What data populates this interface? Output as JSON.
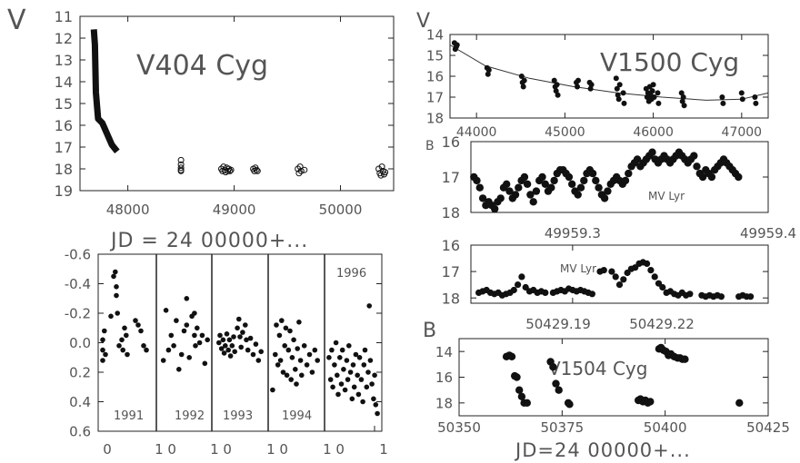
{
  "chart_data": [
    {
      "type": "scatter",
      "title": "V404 Cyg",
      "ylabel": "V",
      "xlabel": "JD = 24 00000+...",
      "xlim": [
        47550,
        50500
      ],
      "ylim": [
        19,
        11
      ],
      "x_ticks": [
        48000,
        49000,
        50000
      ],
      "x_tick_labels": [
        "48000",
        "49000",
        "50000"
      ],
      "y_ticks": [
        11,
        12,
        13,
        14,
        15,
        16,
        17,
        18,
        19
      ],
      "y_tick_labels": [
        "11",
        "12",
        "13",
        "14",
        "15",
        "16",
        "17",
        "18",
        "19"
      ],
      "series": [
        {
          "style": "line",
          "x": [
            47680,
            47690,
            47700,
            47720,
            47760,
            47850,
            47900
          ],
          "y": [
            11.6,
            12.3,
            14.5,
            15.7,
            15.9,
            16.9,
            17.2
          ]
        },
        {
          "style": "open-circles",
          "x": [
            48500,
            48500,
            48500,
            48500,
            48500,
            48880,
            48890,
            48900,
            48910,
            48920,
            48930,
            48940,
            48950,
            48960,
            48970,
            49180,
            49190,
            49200,
            49210,
            49220,
            49600,
            49610,
            49620,
            49630,
            49660,
            50360,
            50370,
            50380,
            50390,
            50400,
            50410,
            50420
          ],
          "y": [
            17.6,
            17.8,
            17.95,
            18.05,
            18.1,
            18.0,
            18.1,
            17.9,
            18.05,
            18.15,
            17.95,
            18.1,
            18.0,
            18.1,
            18.05,
            18.0,
            18.1,
            17.95,
            18.05,
            18.1,
            18.0,
            18.2,
            17.9,
            18.1,
            18.05,
            18.0,
            18.2,
            18.3,
            17.9,
            18.1,
            18.25,
            18.15
          ]
        }
      ]
    },
    {
      "type": "scatter",
      "ylim": [
        0.6,
        -0.6
      ],
      "y_ticks": [
        -0.6,
        -0.4,
        -0.2,
        0.0,
        0.2,
        0.4,
        0.6
      ],
      "y_tick_labels": [
        "-0.6",
        "-0.4",
        "-0.2",
        "0.0",
        "0.2",
        "0.4",
        "0.6"
      ],
      "x_tick_labels": [
        "0",
        "1 0",
        "1 0",
        "1 0",
        "1 0",
        "1"
      ],
      "panel_labels": [
        "1991",
        "1992",
        "1993",
        "1994",
        "1996"
      ],
      "panels": [
        {
          "x": [
            0.05,
            0.05,
            0.05,
            0.08,
            0.1,
            0.2,
            0.25,
            0.28,
            0.3,
            0.3,
            0.32,
            0.35,
            0.4,
            0.42,
            0.45,
            0.48,
            0.5,
            0.65,
            0.7,
            0.75,
            0.8,
            0.85
          ],
          "y": [
            -0.02,
            0.05,
            0.12,
            -0.08,
            0.08,
            -0.18,
            -0.45,
            -0.48,
            -0.38,
            -0.32,
            -0.2,
            0.02,
            -0.02,
            0.05,
            -0.1,
            -0.05,
            0.08,
            -0.15,
            -0.12,
            -0.08,
            0.02,
            0.05
          ]
        },
        {
          "x": [
            0.1,
            0.15,
            0.2,
            0.25,
            0.3,
            0.35,
            0.4,
            0.45,
            0.5,
            0.55,
            0.55,
            0.6,
            0.65,
            0.7,
            0.7,
            0.72,
            0.75,
            0.8,
            0.85,
            0.9,
            0.95
          ],
          "y": [
            0.12,
            -0.22,
            0.05,
            -0.05,
            0.02,
            -0.15,
            0.18,
            0.08,
            -0.08,
            -0.12,
            -0.3,
            0.1,
            -0.18,
            -0.05,
            -0.2,
            0.02,
            -0.1,
            0.0,
            -0.05,
            0.14,
            -0.02
          ]
        },
        {
          "x": [
            0.1,
            0.12,
            0.15,
            0.18,
            0.2,
            0.22,
            0.25,
            0.28,
            0.3,
            0.32,
            0.35,
            0.38,
            0.4,
            0.45,
            0.48,
            0.5,
            0.52,
            0.55,
            0.6,
            0.62,
            0.65,
            0.7,
            0.75,
            0.8,
            0.85,
            0.9
          ],
          "y": [
            0.0,
            -0.05,
            0.04,
            -0.02,
            0.07,
            0.02,
            -0.06,
            0.05,
            -0.02,
            0.09,
            0.02,
            -0.04,
            0.06,
            -0.1,
            -0.16,
            -0.04,
            0.03,
            -0.07,
            -0.12,
            -0.02,
            0.05,
            -0.03,
            0.08,
            0.01,
            0.12,
            0.06
          ]
        },
        {
          "x": [
            0.05,
            0.1,
            0.12,
            0.15,
            0.18,
            0.2,
            0.22,
            0.25,
            0.28,
            0.3,
            0.32,
            0.35,
            0.38,
            0.4,
            0.42,
            0.45,
            0.48,
            0.5,
            0.52,
            0.55,
            0.58,
            0.6,
            0.65,
            0.7,
            0.75,
            0.8,
            0.85,
            0.9
          ],
          "y": [
            0.32,
            0.08,
            -0.12,
            0.15,
            -0.05,
            0.12,
            -0.15,
            0.2,
            0.02,
            -0.1,
            0.22,
            0.05,
            -0.08,
            0.25,
            0.1,
            -0.02,
            0.18,
            0.28,
            0.04,
            -0.14,
            0.12,
            0.22,
            0.02,
            0.15,
            0.08,
            0.2,
            0.05,
            0.12
          ]
        },
        {
          "x": [
            0.05,
            0.08,
            0.1,
            0.12,
            0.15,
            0.18,
            0.2,
            0.22,
            0.25,
            0.28,
            0.3,
            0.32,
            0.35,
            0.38,
            0.4,
            0.42,
            0.45,
            0.48,
            0.5,
            0.52,
            0.55,
            0.58,
            0.6,
            0.62,
            0.65,
            0.68,
            0.7,
            0.72,
            0.75,
            0.78,
            0.8,
            0.82,
            0.85,
            0.88,
            0.9,
            0.92,
            0.95
          ],
          "y": [
            0.1,
            0.25,
            0.05,
            0.3,
            0.15,
            0.0,
            0.22,
            0.35,
            0.1,
            0.28,
            0.05,
            0.18,
            0.32,
            0.12,
            0.25,
            0.02,
            0.2,
            0.38,
            0.15,
            0.3,
            0.08,
            0.22,
            0.35,
            0.1,
            0.25,
            0.4,
            0.15,
            0.05,
            0.3,
            0.2,
            -0.25,
            0.12,
            0.28,
            0.38,
            0.22,
            0.42,
            0.48
          ]
        }
      ]
    },
    {
      "type": "scatter",
      "title": "V1500 Cyg",
      "ylabel": "V",
      "xlim": [
        43700,
        47300
      ],
      "ylim": [
        18,
        14
      ],
      "x_ticks": [
        44000,
        45000,
        46000,
        47000
      ],
      "x_tick_labels": [
        "44000",
        "45000",
        "46000",
        "47000"
      ],
      "y_ticks": [
        14,
        15,
        16,
        17,
        18
      ],
      "y_tick_labels": [
        "14",
        "15",
        "16",
        "17",
        "18"
      ],
      "trend": {
        "x": [
          43700,
          44100,
          44600,
          45100,
          45600,
          46100,
          46600,
          47000,
          47300
        ],
        "y": [
          14.5,
          15.5,
          16.1,
          16.5,
          16.8,
          17.0,
          17.15,
          17.1,
          16.8
        ]
      },
      "x": [
        43750,
        43760,
        43770,
        43780,
        44120,
        44130,
        44140,
        44510,
        44520,
        44530,
        44540,
        44880,
        44890,
        44900,
        44910,
        44920,
        45130,
        45140,
        45150,
        45280,
        45290,
        45300,
        45580,
        45590,
        45600,
        45610,
        45620,
        45660,
        45670,
        45920,
        45930,
        45940,
        45950,
        45960,
        45970,
        45980,
        45990,
        46000,
        46010,
        46050,
        46060,
        46320,
        46330,
        46340,
        46350,
        46780,
        46790,
        47000,
        47010,
        47150,
        47160
      ],
      "y": [
        14.4,
        14.7,
        14.6,
        14.5,
        15.6,
        15.9,
        15.7,
        16.0,
        16.3,
        16.5,
        16.2,
        16.2,
        16.5,
        16.7,
        16.4,
        16.9,
        16.3,
        16.5,
        16.2,
        16.3,
        16.6,
        16.4,
        16.1,
        16.6,
        16.9,
        17.1,
        16.4,
        16.8,
        17.3,
        16.6,
        17.0,
        16.8,
        17.2,
        16.5,
        16.9,
        17.1,
        16.7,
        16.4,
        17.0,
        16.8,
        17.3,
        16.8,
        17.2,
        17.0,
        17.4,
        17.0,
        17.3,
        16.8,
        17.1,
        17.0,
        17.3
      ]
    },
    {
      "type": "scatter",
      "title": "MV Lyr",
      "ylabel": "B",
      "xlim": [
        0,
        100
      ],
      "ylim": [
        18,
        16
      ],
      "y_ticks": [
        16,
        17,
        18
      ],
      "y_tick_labels": [
        "16",
        "17",
        "18"
      ],
      "x": [
        1,
        2,
        3,
        4,
        5,
        6,
        7,
        8,
        9,
        10,
        11,
        12,
        13,
        14,
        15,
        16,
        17,
        18,
        19,
        20,
        21,
        22,
        23,
        24,
        25,
        26,
        27,
        28,
        29,
        30,
        31,
        32,
        33,
        34,
        35,
        36,
        37,
        38,
        39,
        40,
        41,
        42,
        43,
        44,
        45,
        46,
        47,
        48,
        49,
        50,
        51,
        52,
        53,
        54,
        55,
        56,
        57,
        58,
        59,
        60,
        61,
        62,
        63,
        64,
        65,
        66,
        67,
        68,
        69,
        70,
        71,
        72,
        73,
        74,
        75,
        76,
        77,
        78,
        79,
        80,
        81,
        82,
        83,
        84,
        85,
        86,
        87,
        88,
        89,
        90
      ],
      "y": [
        17.0,
        17.1,
        17.3,
        17.6,
        17.8,
        17.7,
        17.8,
        17.9,
        17.7,
        17.6,
        17.3,
        17.2,
        17.4,
        17.6,
        17.5,
        17.3,
        17.1,
        17.0,
        17.2,
        17.5,
        17.7,
        17.4,
        17.1,
        17.0,
        17.2,
        17.4,
        17.3,
        17.1,
        16.9,
        16.8,
        16.8,
        16.9,
        17.0,
        17.2,
        17.4,
        17.5,
        17.3,
        17.1,
        16.9,
        16.8,
        16.9,
        17.1,
        17.3,
        17.5,
        17.6,
        17.4,
        17.2,
        17.1,
        17.0,
        17.1,
        17.2,
        17.1,
        16.9,
        16.7,
        16.6,
        16.5,
        16.7,
        16.6,
        16.5,
        16.4,
        16.3,
        16.5,
        16.6,
        16.5,
        16.4,
        16.5,
        16.6,
        16.5,
        16.4,
        16.3,
        16.4,
        16.5,
        16.6,
        16.5,
        16.4,
        16.7,
        16.9,
        17.0,
        16.8,
        16.9,
        17.0,
        16.8,
        16.7,
        16.6,
        16.5,
        16.6,
        16.7,
        16.8,
        16.9,
        17.0
      ]
    },
    {
      "type": "scatter",
      "title": "MV Lyr",
      "xlim": [
        49959.248,
        49959.4
      ],
      "ylim": [
        18.2,
        16
      ],
      "x_ticks": [
        49959.3,
        49959.4
      ],
      "x_tick_labels": [
        "49959.3",
        "49959.4"
      ],
      "y_ticks": [
        16,
        17,
        18
      ],
      "y_tick_labels": [
        "16",
        "17",
        "18"
      ],
      "x": [
        49959.252,
        49959.254,
        49959.256,
        49959.258,
        49959.26,
        49959.262,
        49959.264,
        49959.266,
        49959.268,
        49959.27,
        49959.272,
        49959.274,
        49959.276,
        49959.278,
        49959.28,
        49959.282,
        49959.284,
        49959.286,
        49959.29,
        49959.292,
        49959.294,
        49959.296,
        49959.298,
        49959.3,
        49959.302,
        49959.304,
        49959.306,
        49959.308,
        49959.31,
        49959.314,
        49959.316,
        49959.32,
        49959.322,
        49959.324,
        49959.326,
        49959.328,
        49959.33,
        49959.332,
        49959.334,
        49959.336,
        49959.338,
        49959.34,
        49959.342,
        49959.344,
        49959.346,
        49959.348,
        49959.35,
        49959.352,
        49959.354,
        49959.356,
        49959.358,
        49959.36,
        49959.366,
        49959.368,
        49959.37,
        49959.372,
        49959.374,
        49959.376,
        49959.385,
        49959.387,
        49959.389,
        49959.391
      ],
      "y": [
        17.8,
        17.75,
        17.7,
        17.8,
        17.85,
        17.8,
        17.9,
        17.85,
        17.8,
        17.7,
        17.5,
        17.2,
        17.6,
        17.75,
        17.7,
        17.8,
        17.75,
        17.8,
        17.8,
        17.75,
        17.7,
        17.75,
        17.65,
        17.7,
        17.75,
        17.7,
        17.75,
        17.8,
        17.85,
        17.0,
        16.95,
        17.0,
        17.2,
        17.5,
        17.3,
        17.05,
        16.9,
        16.85,
        16.7,
        16.65,
        16.7,
        16.95,
        17.2,
        17.45,
        17.6,
        17.8,
        17.75,
        17.85,
        17.9,
        17.8,
        17.9,
        17.85,
        17.9,
        17.95,
        17.9,
        17.95,
        17.9,
        17.95,
        17.95,
        17.9,
        17.95,
        17.95
      ]
    },
    {
      "type": "scatter",
      "title": "V1504 Cyg",
      "ylabel": "B",
      "xlabel": "JD=24 00000+...",
      "xlim": [
        50350,
        50425
      ],
      "ylim": [
        19,
        13
      ],
      "x_ticks": [
        50350,
        50375,
        50400,
        50425
      ],
      "x_tick_labels": [
        "50350",
        "50375",
        "50400",
        "50425"
      ],
      "top_tick_labels": [
        "50429.19",
        "50429.22"
      ],
      "y_ticks": [
        14,
        16,
        18
      ],
      "y_tick_labels": [
        "14",
        "16",
        "18"
      ],
      "x": [
        50361.5,
        50362.2,
        50362.8,
        50363.5,
        50364.0,
        50364.6,
        50365.2,
        50365.8,
        50366.5,
        50372.2,
        50372.8,
        50373.5,
        50374.2,
        50376.5,
        50376.8,
        50393.5,
        50394.0,
        50394.6,
        50395.2,
        50395.8,
        50396.4,
        50398.5,
        50399.0,
        50399.6,
        50400.2,
        50400.8,
        50401.4,
        50402.2,
        50403.0,
        50403.6,
        50404.2,
        50404.8,
        50418.0
      ],
      "y": [
        14.4,
        14.3,
        14.4,
        15.9,
        16.0,
        17.0,
        17.5,
        18.0,
        18.0,
        14.8,
        15.2,
        16.5,
        17.0,
        18.0,
        18.1,
        17.8,
        17.7,
        17.9,
        17.8,
        18.0,
        17.9,
        13.8,
        13.7,
        13.9,
        14.0,
        14.3,
        14.2,
        14.4,
        14.5,
        14.5,
        14.6,
        14.6,
        18.0
      ]
    }
  ]
}
